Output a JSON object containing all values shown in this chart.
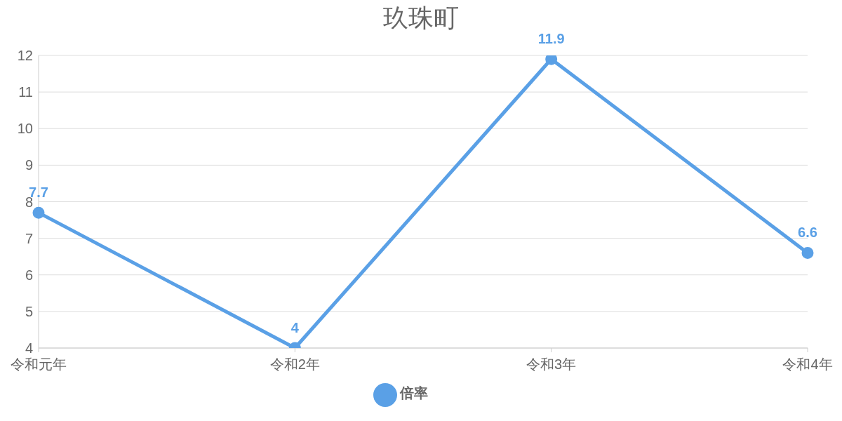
{
  "chart_data": {
    "type": "line",
    "title": "玖珠町",
    "categories": [
      "令和元年",
      "令和2年",
      "令和3年",
      "令和4年"
    ],
    "series": [
      {
        "name": "倍率",
        "color": "#5aa0e6",
        "values": [
          7.7,
          4,
          11.9,
          6.6
        ]
      }
    ],
    "ylim": [
      4,
      12
    ],
    "yticks": [
      4,
      5,
      6,
      7,
      8,
      9,
      10,
      11,
      12
    ],
    "grid": "y",
    "legend": "bottom",
    "marker": "circle",
    "line_style": "solid",
    "data_labels": true
  }
}
